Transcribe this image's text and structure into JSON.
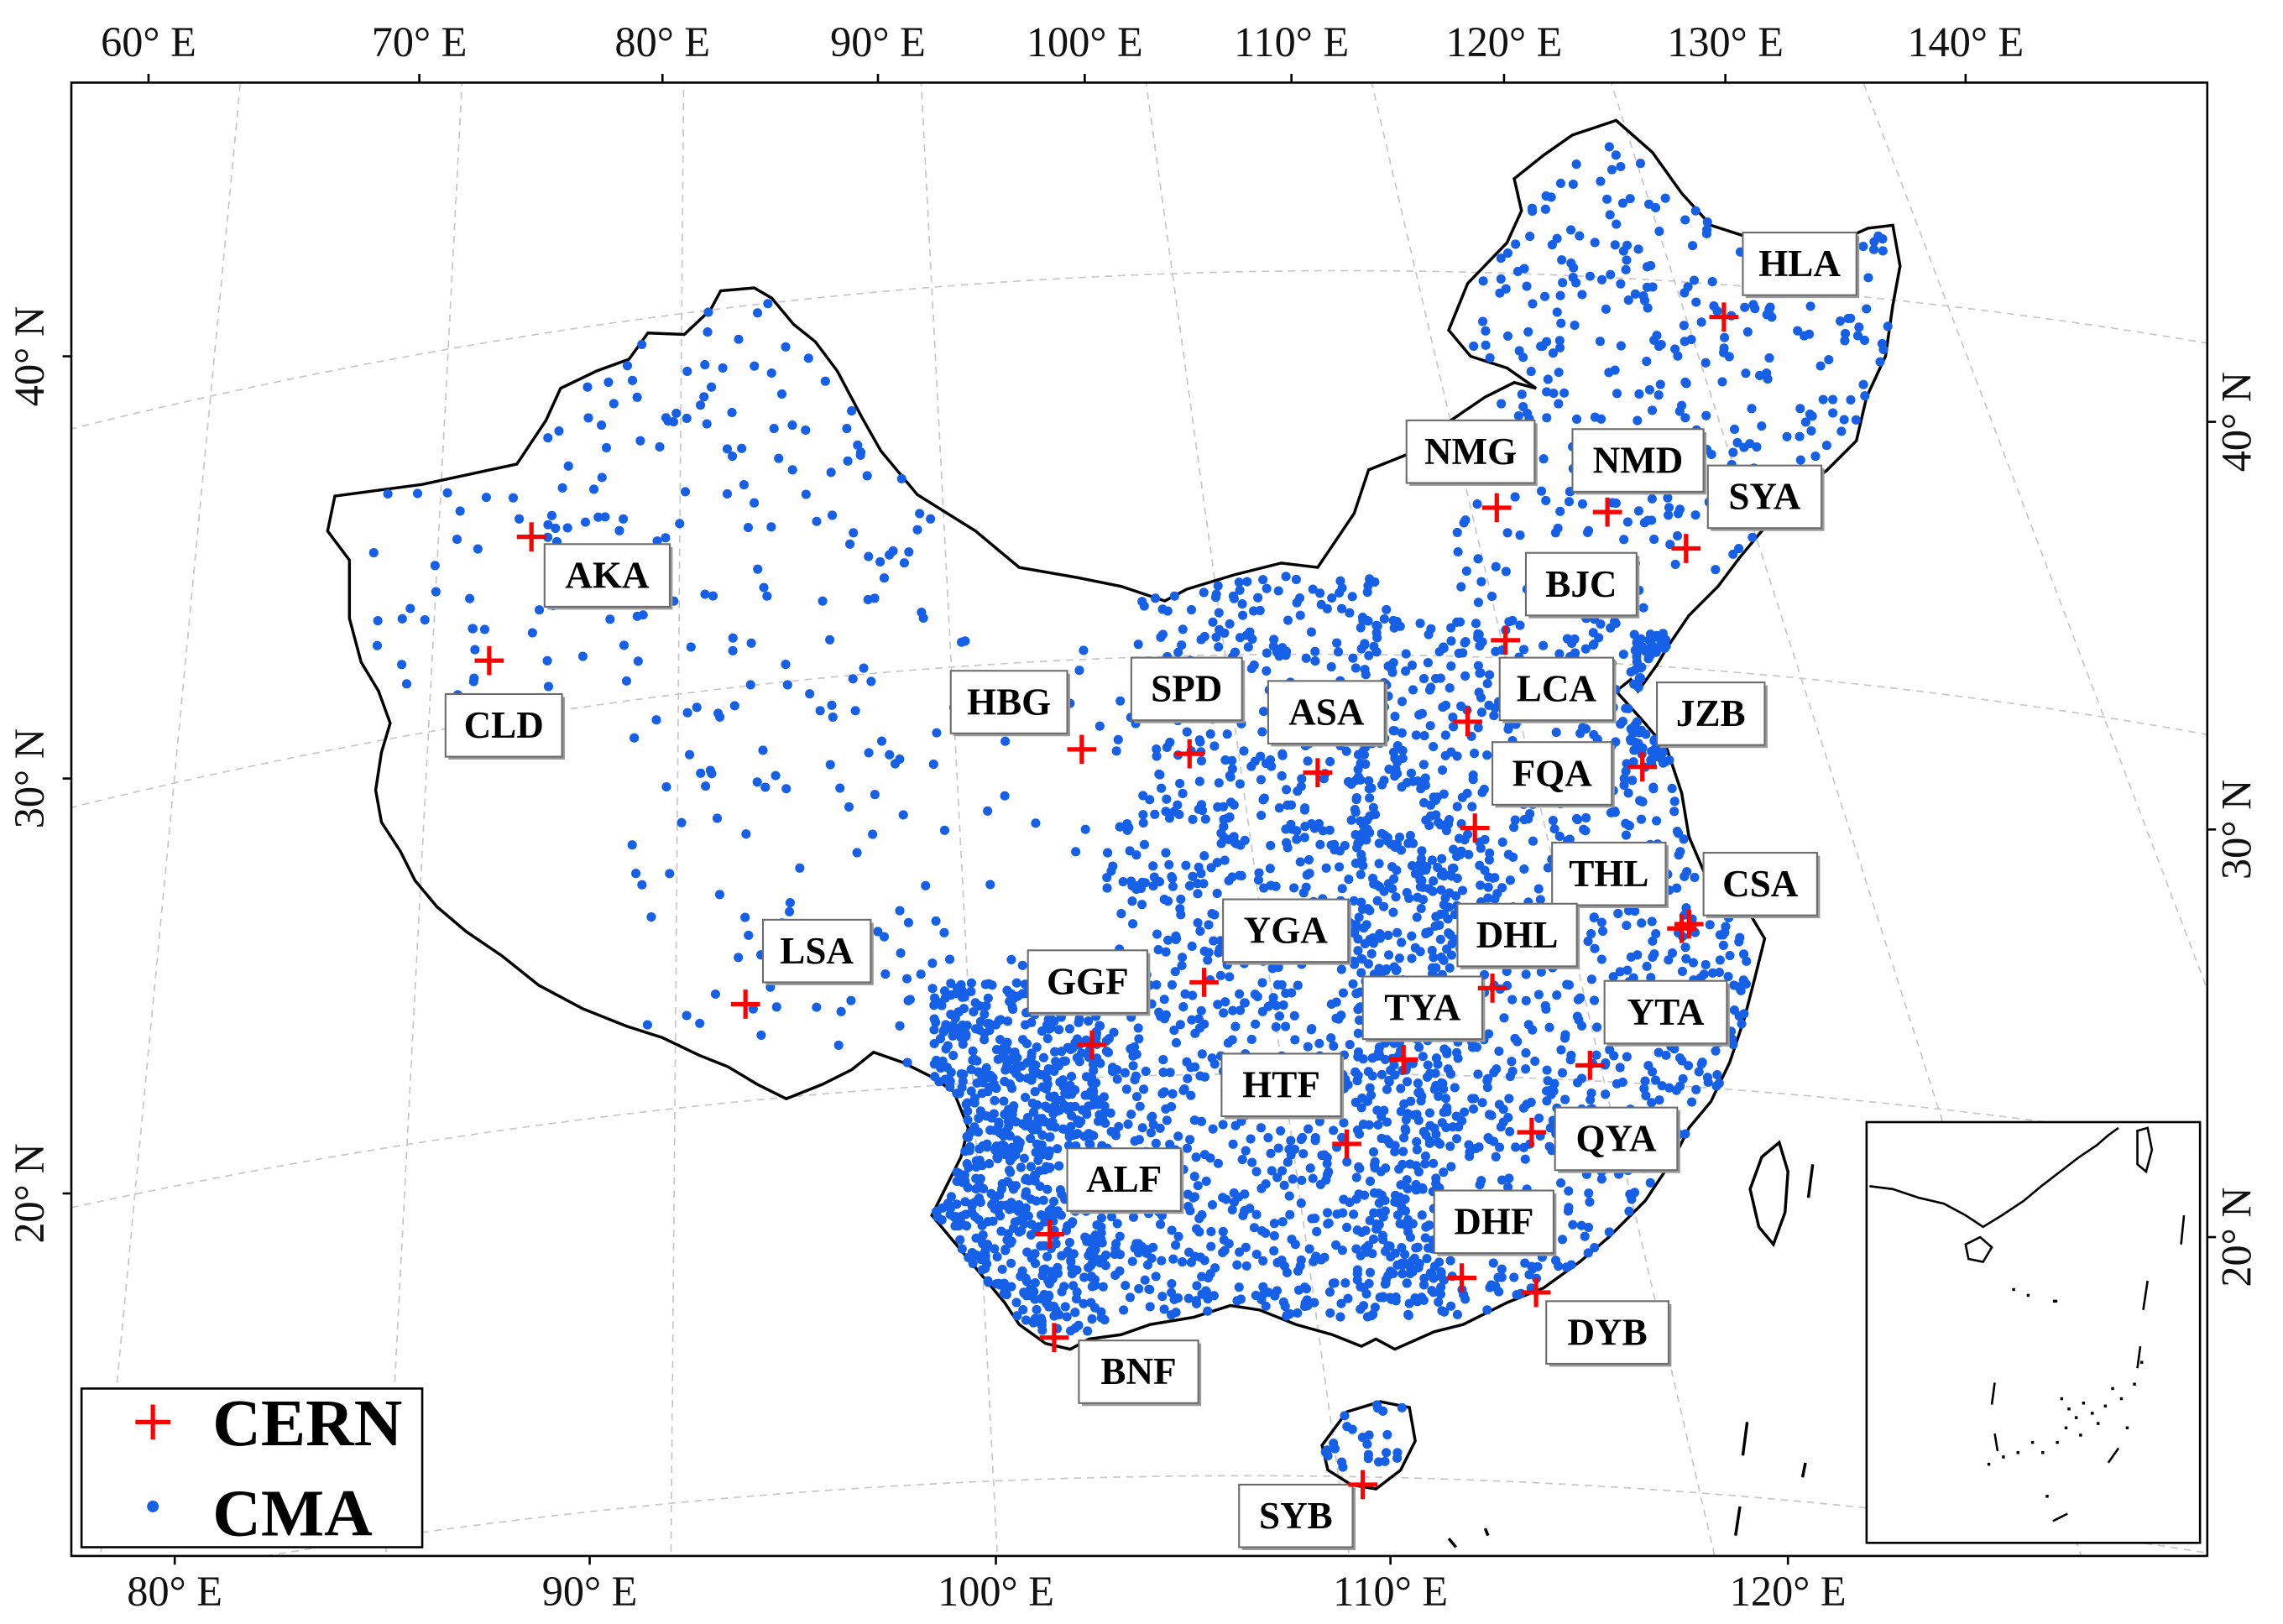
{
  "axes": {
    "top_lon_labels": [
      "60° E",
      "70° E",
      "80° E",
      "90° E",
      "100° E",
      "110° E",
      "120° E",
      "130° E",
      "140° E"
    ],
    "bottom_lon_labels": [
      "80° E",
      "90° E",
      "100° E",
      "110° E",
      "120° E"
    ],
    "left_lat_labels": [
      "40° N",
      "30° N",
      "20° N"
    ],
    "right_lat_labels": [
      "40° N",
      "30° N",
      "20° N"
    ]
  },
  "legend": {
    "cern_label": "CERN",
    "cma_label": "CMA",
    "cern_symbol": "red-plus-icon",
    "cma_symbol": "blue-dot-icon"
  },
  "colors": {
    "cern": "#ff0000",
    "cma": "#1560e6",
    "border": "#000000",
    "graticule": "#c8c8c8"
  },
  "cern_stations": [
    "HLA",
    "NMG",
    "NMD",
    "SYA",
    "AKA",
    "BJC",
    "CLD",
    "HBG",
    "SPD",
    "ASA",
    "LCA",
    "JZB",
    "FQA",
    "THL",
    "CSA",
    "LSA",
    "YGA",
    "DHL",
    "GGF",
    "TYA",
    "YTA",
    "HTF",
    "QYA",
    "ALF",
    "DHF",
    "DYB",
    "BNF",
    "SYB"
  ]
}
